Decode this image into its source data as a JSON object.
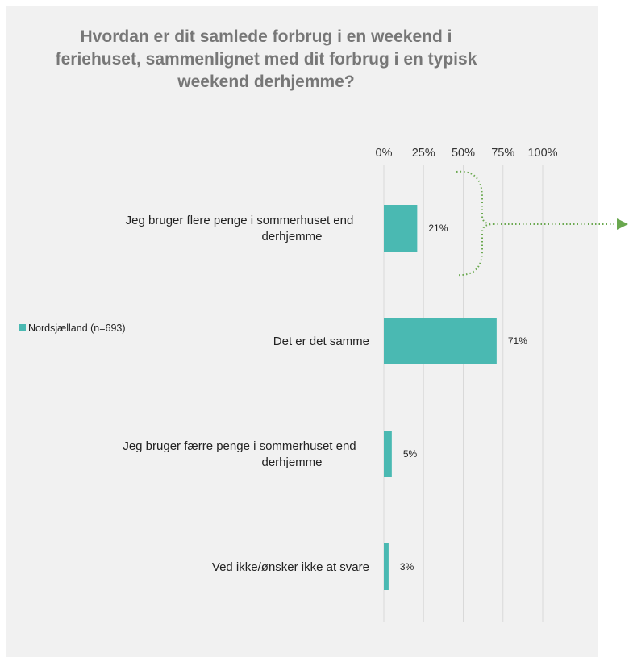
{
  "chart_data": {
    "type": "bar",
    "orientation": "horizontal",
    "title_lines": [
      "Hvordan er dit samlede forbrug i en weekend i",
      "feriehuset, sammenlignet med dit forbrug i en typisk",
      "weekend derhjemme?"
    ],
    "x_ticks": [
      "0%",
      "25%",
      "50%",
      "75%",
      "100%"
    ],
    "xlim": [
      0,
      100
    ],
    "grid": true,
    "legend_position": "left",
    "categories": [
      [
        "Jeg bruger flere penge i sommerhuset end",
        "derhjemme"
      ],
      [
        "Det er det samme"
      ],
      [
        "Jeg bruger færre penge i sommerhuset end",
        "derhjemme"
      ],
      [
        "Ved ikke/ønsker ikke at svare"
      ]
    ],
    "series": [
      {
        "name": "Nordsjælland (n=693)",
        "color": "#4ab9b2",
        "values": [
          21,
          71,
          5,
          3
        ],
        "labels": [
          "21%",
          "71%",
          "5%",
          "3%"
        ]
      }
    ],
    "annotation": {
      "type": "dotted-bracket-arrow",
      "target_category_index": 0,
      "color": "#6aa84f"
    }
  }
}
